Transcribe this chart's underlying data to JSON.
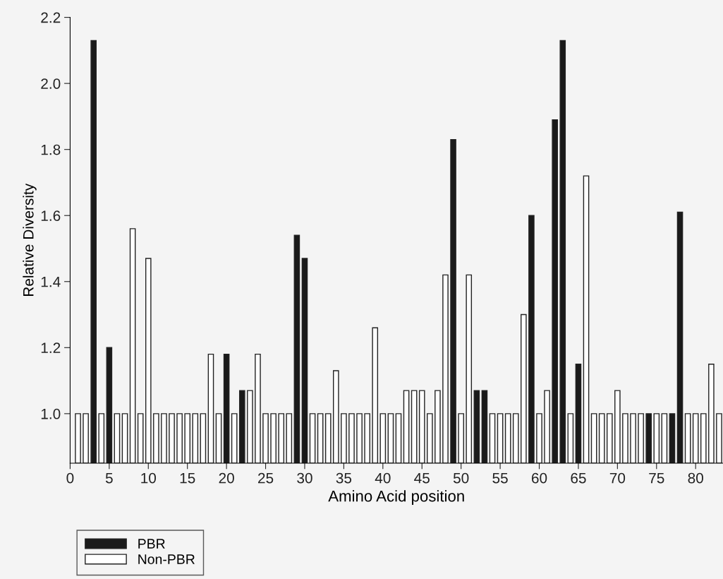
{
  "chart_data": {
    "type": "bar",
    "xlabel": "Amino Acid position",
    "ylabel": "Relative Diversity",
    "xlim": [
      0,
      83.5
    ],
    "xticks": [
      0,
      5,
      10,
      15,
      20,
      25,
      30,
      35,
      40,
      45,
      50,
      55,
      60,
      65,
      70,
      75,
      80
    ],
    "ylim": [
      0.85,
      2.2
    ],
    "yticks": [
      {
        "value": 1,
        "label": "1.0"
      },
      1.2,
      1.4,
      1.6,
      1.8,
      {
        "value": 2,
        "label": "2.0"
      },
      2.2
    ],
    "grid": false,
    "legend": "bottom left",
    "series": [
      {
        "name": "PBR",
        "color": "#1a1a1a",
        "x": [
          3,
          5,
          20,
          22,
          29,
          30,
          49,
          52,
          53,
          59,
          62,
          63,
          65,
          74,
          77,
          78
        ],
        "values": [
          2.13,
          1.2,
          1.18,
          1.07,
          1.54,
          1.47,
          1.83,
          1.07,
          1.07,
          1.6,
          1.89,
          2.13,
          1.15,
          1.0,
          1.0,
          1.61
        ]
      },
      {
        "name": "Non-PBR",
        "color": "#ffffff",
        "x": [
          1,
          2,
          4,
          6,
          7,
          8,
          9,
          10,
          11,
          12,
          13,
          14,
          15,
          16,
          17,
          18,
          19,
          21,
          23,
          24,
          25,
          26,
          27,
          28,
          31,
          32,
          33,
          34,
          35,
          36,
          37,
          38,
          39,
          40,
          41,
          42,
          43,
          44,
          45,
          46,
          47,
          48,
          50,
          51,
          54,
          55,
          56,
          57,
          58,
          60,
          61,
          64,
          66,
          67,
          68,
          69,
          70,
          71,
          72,
          73,
          75,
          76,
          79,
          80,
          81,
          82,
          83
        ],
        "values": [
          1.0,
          1.0,
          1.0,
          1.0,
          1.0,
          1.56,
          1.0,
          1.47,
          1.0,
          1.0,
          1.0,
          1.0,
          1.0,
          1.0,
          1.0,
          1.18,
          1.0,
          1.0,
          1.07,
          1.18,
          1.0,
          1.0,
          1.0,
          1.0,
          1.0,
          1.0,
          1.0,
          1.13,
          1.0,
          1.0,
          1.0,
          1.0,
          1.26,
          1.0,
          1.0,
          1.0,
          1.07,
          1.07,
          1.07,
          1.0,
          1.07,
          1.42,
          1.0,
          1.42,
          1.0,
          1.0,
          1.0,
          1.0,
          1.3,
          1.0,
          1.07,
          1.0,
          1.72,
          1.0,
          1.0,
          1.0,
          1.07,
          1.0,
          1.0,
          1.0,
          1.0,
          1.0,
          1.0,
          1.0,
          1.0,
          1.15,
          1.0
        ]
      }
    ]
  }
}
